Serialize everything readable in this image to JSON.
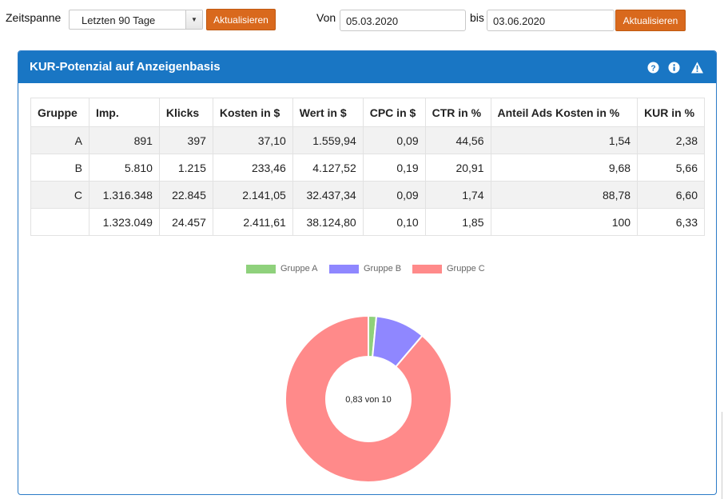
{
  "filters": {
    "zeitspanne_label": "Zeitspanne",
    "zeitspanne_value": "Letzten 90 Tage",
    "refresh_label_1": "Aktualisieren",
    "von_label": "Von",
    "von_value": "05.03.2020",
    "bis_label": "bis",
    "bis_value": "03.06.2020",
    "refresh_label_2": "Aktualisieren"
  },
  "panel": {
    "title": "KUR-Potenzial auf Anzeigenbasis",
    "icons": [
      "question-icon",
      "info-icon",
      "warning-icon"
    ],
    "header_color": "#1976c4"
  },
  "table": {
    "headers": [
      "Gruppe",
      "Imp.",
      "Klicks",
      "Kosten in $",
      "Wert in $",
      "CPC in $",
      "CTR in %",
      "Anteil Ads Kosten in %",
      "KUR in %"
    ],
    "rows": [
      [
        "A",
        "891",
        "397",
        "37,10",
        "1.559,94",
        "0,09",
        "44,56",
        "1,54",
        "2,38"
      ],
      [
        "B",
        "5.810",
        "1.215",
        "233,46",
        "4.127,52",
        "0,19",
        "20,91",
        "9,68",
        "5,66"
      ],
      [
        "C",
        "1.316.348",
        "22.845",
        "2.141,05",
        "32.437,34",
        "0,09",
        "1,74",
        "88,78",
        "6,60"
      ],
      [
        "",
        "1.323.049",
        "24.457",
        "2.411,61",
        "38.124,80",
        "0,10",
        "1,85",
        "100",
        "6,33"
      ]
    ]
  },
  "chart_data": {
    "type": "pie",
    "categories": [
      "Gruppe A",
      "Gruppe B",
      "Gruppe C"
    ],
    "values": [
      1.54,
      9.68,
      88.78
    ],
    "colors": [
      "#8fd17c",
      "#8f87ff",
      "#ff8a8a"
    ],
    "center_label": "0,83 von 10",
    "legend_position": "top"
  }
}
